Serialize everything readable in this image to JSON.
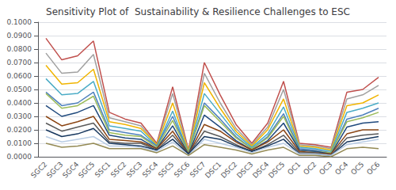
{
  "chart_data": {
    "type": "line",
    "title": "Sensitivity Plot of  Sustainability & Resilience Challenges to ESC",
    "categories": [
      "SGC2",
      "SGC3",
      "SGC4",
      "SGC5",
      "SSC1",
      "SSC2",
      "SSC3",
      "SSC4",
      "SSC5",
      "SSC6",
      "SSC7",
      "DSC1",
      "DSC2",
      "DSC3",
      "DSC4",
      "DSC5",
      "OC1",
      "OC2",
      "OC3",
      "OC4",
      "OC5",
      "OC6"
    ],
    "ylim": [
      0.0,
      0.1
    ],
    "yticks": [
      {
        "value": 0.0,
        "label": "0.0000"
      },
      {
        "value": 0.01,
        "label": "0.0100"
      },
      {
        "value": 0.02,
        "label": "0.0200"
      },
      {
        "value": 0.03,
        "label": "0.0300"
      },
      {
        "value": 0.04,
        "label": "0.0400"
      },
      {
        "value": 0.05,
        "label": "0.0500"
      },
      {
        "value": 0.06,
        "label": "0.0600"
      },
      {
        "value": 0.07,
        "label": "0.0700"
      },
      {
        "value": 0.08,
        "label": "0.0800"
      },
      {
        "value": 0.09,
        "label": "0.0900"
      },
      {
        "value": 0.1,
        "label": "0.1000"
      }
    ],
    "grid": true,
    "series": [
      {
        "color": "#C0504D",
        "values": [
          0.088,
          0.072,
          0.075,
          0.086,
          0.033,
          0.028,
          0.025,
          0.01,
          0.052,
          0.005,
          0.07,
          0.046,
          0.024,
          0.01,
          0.025,
          0.056,
          0.01,
          0.009,
          0.007,
          0.048,
          0.05,
          0.059
        ]
      },
      {
        "color": "#A0A0A0",
        "values": [
          0.077,
          0.062,
          0.063,
          0.076,
          0.029,
          0.026,
          0.023,
          0.009,
          0.047,
          0.004,
          0.062,
          0.04,
          0.021,
          0.009,
          0.022,
          0.05,
          0.009,
          0.008,
          0.006,
          0.043,
          0.046,
          0.053
        ]
      },
      {
        "color": "#F0B400",
        "values": [
          0.068,
          0.054,
          0.055,
          0.065,
          0.026,
          0.024,
          0.021,
          0.009,
          0.04,
          0.004,
          0.055,
          0.036,
          0.019,
          0.008,
          0.02,
          0.043,
          0.008,
          0.007,
          0.005,
          0.038,
          0.04,
          0.046
        ]
      },
      {
        "color": "#4BACC6",
        "values": [
          0.058,
          0.046,
          0.047,
          0.056,
          0.023,
          0.021,
          0.019,
          0.008,
          0.034,
          0.003,
          0.047,
          0.032,
          0.017,
          0.007,
          0.017,
          0.037,
          0.007,
          0.006,
          0.004,
          0.033,
          0.036,
          0.04
        ]
      },
      {
        "color": "#4F81BD",
        "values": [
          0.048,
          0.038,
          0.04,
          0.048,
          0.02,
          0.018,
          0.016,
          0.008,
          0.03,
          0.003,
          0.04,
          0.028,
          0.015,
          0.006,
          0.015,
          0.032,
          0.006,
          0.005,
          0.003,
          0.028,
          0.031,
          0.036
        ]
      },
      {
        "color": "#9BBB59",
        "values": [
          0.047,
          0.036,
          0.038,
          0.045,
          0.018,
          0.016,
          0.015,
          0.007,
          0.027,
          0.003,
          0.038,
          0.026,
          0.014,
          0.006,
          0.014,
          0.03,
          0.005,
          0.004,
          0.003,
          0.026,
          0.029,
          0.033
        ]
      },
      {
        "color": "#1F497D",
        "values": [
          0.038,
          0.03,
          0.033,
          0.038,
          0.016,
          0.014,
          0.013,
          0.006,
          0.023,
          0.002,
          0.031,
          0.022,
          0.012,
          0.005,
          0.012,
          0.025,
          0.005,
          0.004,
          0.002,
          0.022,
          0.025,
          0.026
        ]
      },
      {
        "color": "#8B4513",
        "values": [
          0.03,
          0.023,
          0.026,
          0.03,
          0.013,
          0.012,
          0.011,
          0.006,
          0.019,
          0.002,
          0.024,
          0.019,
          0.011,
          0.005,
          0.011,
          0.02,
          0.004,
          0.003,
          0.002,
          0.017,
          0.02,
          0.02
        ]
      },
      {
        "color": "#595959",
        "values": [
          0.025,
          0.019,
          0.022,
          0.025,
          0.011,
          0.01,
          0.01,
          0.005,
          0.016,
          0.002,
          0.019,
          0.015,
          0.009,
          0.004,
          0.009,
          0.016,
          0.003,
          0.003,
          0.001,
          0.014,
          0.016,
          0.017
        ]
      },
      {
        "color": "#17375E",
        "values": [
          0.02,
          0.015,
          0.017,
          0.021,
          0.01,
          0.009,
          0.008,
          0.005,
          0.013,
          0.002,
          0.015,
          0.013,
          0.008,
          0.004,
          0.008,
          0.013,
          0.002,
          0.002,
          0.001,
          0.011,
          0.013,
          0.015
        ]
      },
      {
        "color": "#B8CCE4",
        "values": [
          0.015,
          0.011,
          0.013,
          0.015,
          0.008,
          0.008,
          0.007,
          0.004,
          0.011,
          0.001,
          0.013,
          0.01,
          0.007,
          0.003,
          0.007,
          0.01,
          0.002,
          0.002,
          0.001,
          0.009,
          0.011,
          0.013
        ]
      },
      {
        "color": "#948A54",
        "values": [
          0.01,
          0.007,
          0.008,
          0.01,
          0.006,
          0.006,
          0.006,
          0.003,
          0.008,
          0.001,
          0.009,
          0.007,
          0.005,
          0.002,
          0.005,
          0.007,
          0.001,
          0.001,
          0.0,
          0.006,
          0.007,
          0.006
        ]
      }
    ]
  }
}
